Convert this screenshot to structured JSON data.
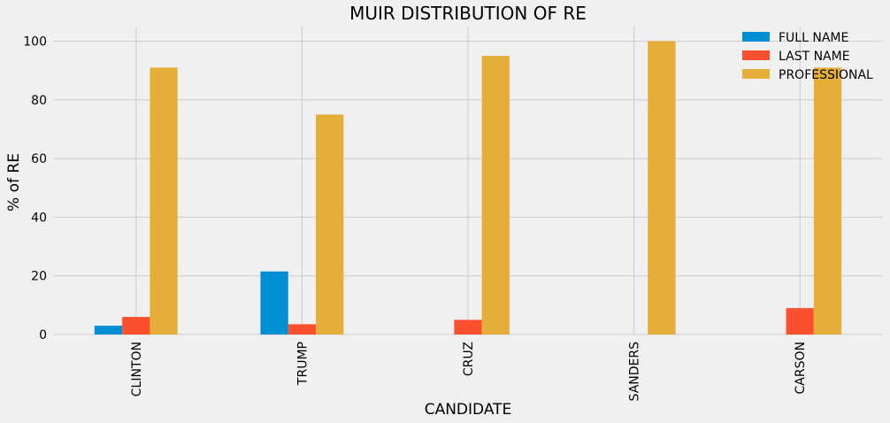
{
  "chart_data": {
    "type": "bar",
    "title": "MUIR DISTRIBUTION OF RE",
    "xlabel": "CANDIDATE",
    "ylabel": "% of RE",
    "categories": [
      "CLINTON",
      "TRUMP",
      "CRUZ",
      "SANDERS",
      "CARSON"
    ],
    "series": [
      {
        "name": "FULL NAME",
        "color": "#008fd5",
        "values": [
          3,
          21.5,
          0,
          0,
          0
        ]
      },
      {
        "name": "LAST NAME",
        "color": "#fc4f30",
        "values": [
          6,
          3.5,
          5,
          0,
          9
        ]
      },
      {
        "name": "PROFESSIONAL",
        "color": "#e5ae38",
        "values": [
          91,
          75,
          95,
          100,
          91
        ]
      }
    ],
    "ylim": [
      0,
      105
    ],
    "yticks": [
      0,
      20,
      40,
      60,
      80,
      100
    ],
    "grid": true,
    "legend_position": "top-right",
    "background": "#f0f0f0"
  }
}
